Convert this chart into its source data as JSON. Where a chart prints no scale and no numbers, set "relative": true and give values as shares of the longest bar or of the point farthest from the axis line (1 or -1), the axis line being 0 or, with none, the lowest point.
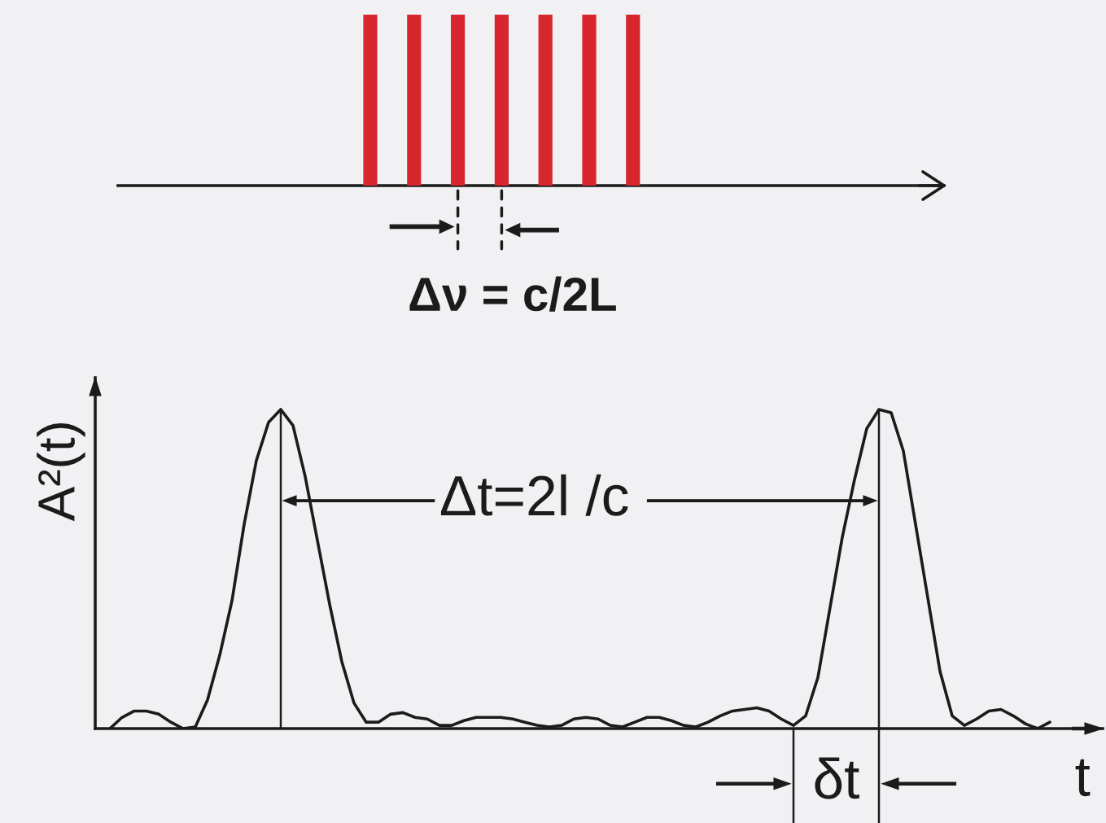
{
  "chart_data": [
    {
      "type": "bar",
      "relative": true,
      "categories": [
        null,
        null,
        null,
        null,
        null,
        null,
        null
      ],
      "values": [
        1,
        1,
        1,
        1,
        1,
        1,
        1
      ],
      "color": "#d7262e",
      "annotations": [
        "Δν = c/2L"
      ]
    },
    {
      "type": "line",
      "relative": true,
      "ylabel": "A²(t)",
      "xlabel": "t",
      "color": "#1b1b1b",
      "annotations": [
        "Δt=2l /c",
        "δt"
      ],
      "categories": [
        null,
        null,
        null,
        null,
        null,
        null,
        null,
        null,
        null,
        null,
        null,
        null,
        null,
        null,
        null,
        null,
        null,
        null,
        null,
        null,
        null,
        null,
        null,
        null,
        null,
        null,
        null,
        null,
        null,
        null,
        null,
        null,
        null,
        null,
        null,
        null,
        null,
        null,
        null,
        null,
        null,
        null,
        null,
        null,
        null,
        null,
        null,
        null,
        null,
        null,
        null,
        null,
        null,
        null,
        null,
        null,
        null,
        null,
        null,
        null,
        null,
        null,
        null,
        null,
        null,
        null,
        null,
        null,
        null,
        null,
        null,
        null,
        null,
        null,
        null,
        null,
        null,
        null
      ],
      "values": [
        0.0,
        0.035,
        0.055,
        0.055,
        0.045,
        0.02,
        0.0,
        0.005,
        0.09,
        0.23,
        0.4,
        0.64,
        0.84,
        0.96,
        1.0,
        0.95,
        0.79,
        0.59,
        0.39,
        0.21,
        0.08,
        0.02,
        0.02,
        0.045,
        0.05,
        0.035,
        0.03,
        0.01,
        0.01,
        0.025,
        0.035,
        0.035,
        0.035,
        0.03,
        0.02,
        0.01,
        0.005,
        0.01,
        0.03,
        0.035,
        0.03,
        0.01,
        0.005,
        0.02,
        0.035,
        0.035,
        0.025,
        0.01,
        0.005,
        0.02,
        0.04,
        0.055,
        0.06,
        0.065,
        0.055,
        0.03,
        0.01,
        0.04,
        0.16,
        0.38,
        0.6,
        0.78,
        0.94,
        1.0,
        0.99,
        0.87,
        0.64,
        0.41,
        0.18,
        0.04,
        0.01,
        0.03,
        0.055,
        0.06,
        0.04,
        0.015,
        0.0,
        0.02
      ]
    }
  ]
}
